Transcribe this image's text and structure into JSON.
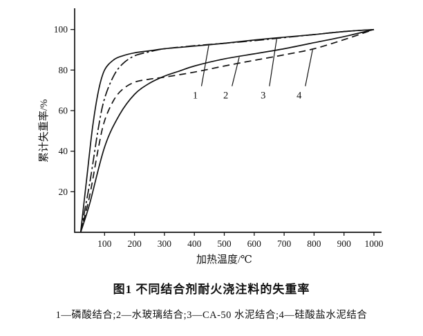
{
  "figure": {
    "caption": "图1 不同结合剂耐火浇注料的失重率",
    "legend": "1—磷酸结合;2—水玻璃结合;3—CA-50 水泥结合;4—硅酸盐水泥结合"
  },
  "chart_data": {
    "type": "line",
    "title": "图1 不同结合剂耐火浇注料的失重率",
    "xlabel": "加热温度/℃",
    "ylabel": "累计失重率/%",
    "xlim": [
      0,
      1000
    ],
    "ylim": [
      0,
      105
    ],
    "x_ticks": [
      100,
      200,
      300,
      400,
      500,
      600,
      700,
      800,
      900,
      1000
    ],
    "y_ticks": [
      20,
      40,
      60,
      80,
      100
    ],
    "grid": false,
    "legend_position": "below",
    "line_color": "#111111",
    "series": [
      {
        "name": "磷酸结合",
        "tag": "1",
        "style": "solid",
        "tag_x": 403,
        "x": [
          20,
          40,
          60,
          80,
          100,
          130,
          160,
          200,
          250,
          300,
          400,
          500,
          600,
          700,
          800,
          900,
          1000
        ],
        "y": [
          0,
          26,
          52,
          70,
          80,
          85,
          87,
          88.5,
          89.5,
          90.5,
          91.8,
          93.2,
          94.8,
          96.2,
          97.5,
          99,
          100
        ]
      },
      {
        "name": "水玻璃结合",
        "tag": "2",
        "style": "solid",
        "tag_x": 505,
        "x": [
          20,
          50,
          100,
          150,
          200,
          250,
          300,
          350,
          400,
          500,
          600,
          700,
          800,
          900,
          1000
        ],
        "y": [
          0,
          14,
          42,
          58,
          68,
          73.5,
          77,
          79.5,
          82,
          85.5,
          88,
          90.5,
          93.5,
          96.5,
          100
        ]
      },
      {
        "name": "CA-50水泥结合",
        "tag": "3",
        "style": "dashdot",
        "tag_x": 630,
        "x": [
          20,
          50,
          80,
          100,
          130,
          160,
          200,
          250,
          300,
          400,
          500,
          600,
          700,
          800,
          900,
          1000
        ],
        "y": [
          0,
          24,
          52,
          66,
          77,
          83,
          87,
          89,
          90.5,
          92,
          93.2,
          94.5,
          96,
          97.5,
          99,
          100
        ]
      },
      {
        "name": "硅酸盐水泥结合",
        "tag": "4",
        "style": "dashed",
        "tag_x": 750,
        "x": [
          20,
          50,
          80,
          100,
          130,
          160,
          200,
          250,
          300,
          400,
          500,
          600,
          700,
          800,
          900,
          1000
        ],
        "y": [
          0,
          18,
          42,
          55,
          65,
          70.5,
          74,
          75.5,
          76.5,
          79,
          82,
          84.8,
          87.5,
          90.5,
          95,
          100
        ]
      }
    ]
  }
}
